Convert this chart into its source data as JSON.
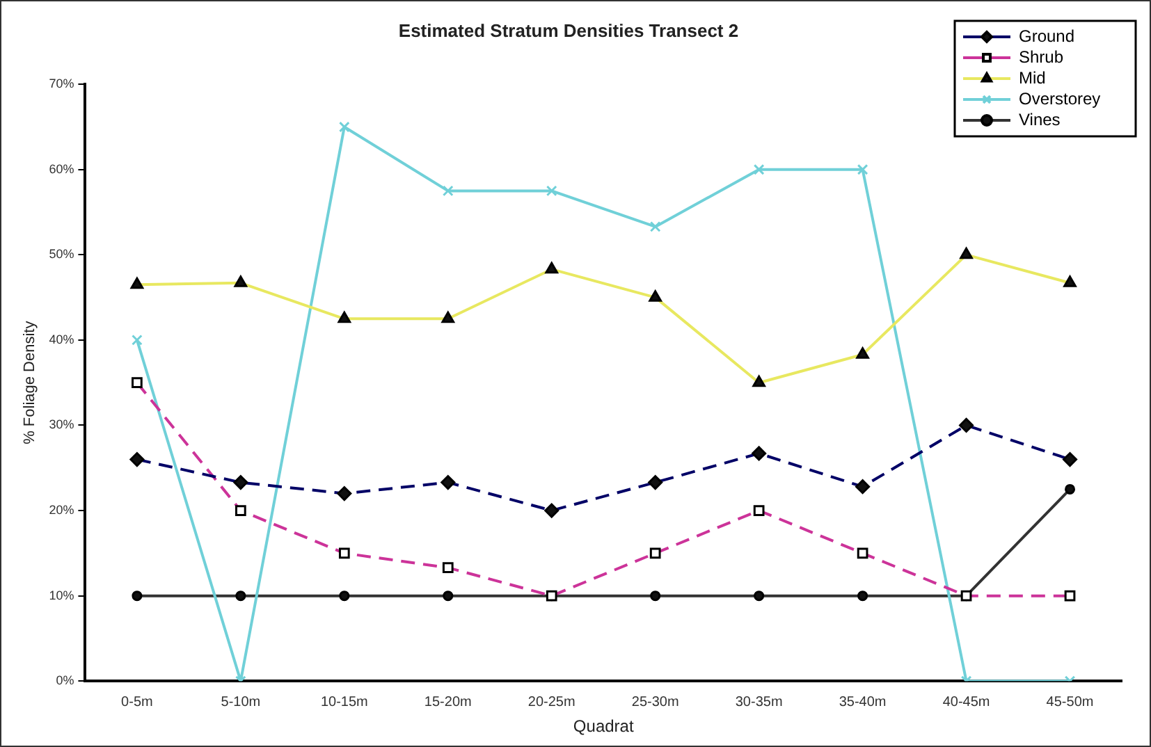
{
  "chart_data": {
    "type": "line",
    "title": "Estimated Stratum Densities Transect 2",
    "xlabel": "Quadrat",
    "ylabel": "% Foliage Density",
    "categories": [
      "0-5m",
      "5-10m",
      "10-15m",
      "15-20m",
      "20-25m",
      "25-30m",
      "30-35m",
      "35-40m",
      "40-45m",
      "45-50m"
    ],
    "ylim": [
      0,
      70
    ],
    "yticks": [
      {
        "value": 0,
        "label": "0%"
      },
      {
        "value": 10,
        "label": "10%"
      },
      {
        "value": 20,
        "label": "20%"
      },
      {
        "value": 30,
        "label": "30%"
      },
      {
        "value": 40,
        "label": "40%"
      },
      {
        "value": 50,
        "label": "50%"
      },
      {
        "value": 60,
        "label": "60%"
      },
      {
        "value": 70,
        "label": "70%"
      }
    ],
    "grid": false,
    "legend": "top right",
    "series": [
      {
        "name": "Ground",
        "color": "#000066",
        "marker": "diamond",
        "line_style": "dashed",
        "values": [
          26,
          23.3,
          22,
          23.3,
          20,
          23.3,
          26.7,
          22.8,
          30,
          26
        ]
      },
      {
        "name": "Shrub",
        "color": "#cc3399",
        "marker": "square",
        "line_style": "dashed",
        "values": [
          35,
          20,
          15,
          13.3,
          10,
          15,
          20,
          15,
          10,
          10
        ]
      },
      {
        "name": "Mid",
        "color": "#e8e860",
        "marker": "triangle",
        "line_style": "solid",
        "values": [
          46.5,
          46.7,
          42.5,
          42.5,
          48.3,
          45,
          35,
          38.3,
          50,
          46.7
        ]
      },
      {
        "name": "Overstorey",
        "color": "#70d0d8",
        "marker": "cross",
        "line_style": "solid",
        "values": [
          40,
          0,
          65,
          57.5,
          57.5,
          53.3,
          60,
          60,
          0,
          0
        ]
      },
      {
        "name": "Vines",
        "color": "#333333",
        "marker": "circle",
        "line_style": "solid",
        "values": [
          10,
          10,
          10,
          10,
          10,
          10,
          10,
          10,
          10,
          22.5
        ]
      }
    ]
  }
}
